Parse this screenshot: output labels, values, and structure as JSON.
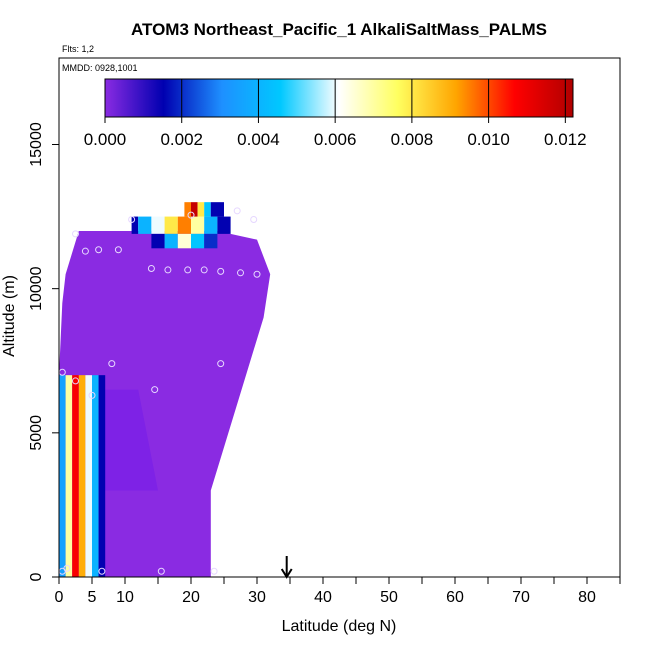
{
  "chart_data": {
    "type": "heatmap",
    "title": "ATOM3 Northeast_Pacific_1 AlkaliSaltMass_PALMS",
    "flights_label": "Flts: 1,2",
    "dates_label": "MMDD: 0928,1001",
    "xlabel": "Latitude (deg N)",
    "ylabel": "Altitude (m)",
    "xlim": [
      0,
      85
    ],
    "ylim": [
      0,
      18000
    ],
    "x_ticks": [
      0,
      5,
      10,
      20,
      30,
      40,
      50,
      60,
      70,
      80
    ],
    "y_ticks": [
      0,
      5000,
      10000,
      15000
    ],
    "colorbar": {
      "range": [
        0,
        0.0122
      ],
      "ticks": [
        "0.000",
        "0.002",
        "0.004",
        "0.006",
        "0.008",
        "0.010",
        "0.012"
      ],
      "tick_values": [
        0,
        0.002,
        0.004,
        0.006,
        0.008,
        0.01,
        0.012
      ],
      "colors": [
        "#8a2be2",
        "#0000b0",
        "#1e90ff",
        "#00c8ff",
        "#ffffff",
        "#ffff60",
        "#ffa500",
        "#ff0000",
        "#b00000"
      ]
    },
    "background_value": 0.0,
    "cells": [
      {
        "lat": [
          0,
          1
        ],
        "alt": [
          0,
          7000
        ],
        "value": 0.0035
      },
      {
        "lat": [
          1,
          2
        ],
        "alt": [
          0,
          7000
        ],
        "value": 0.007
      },
      {
        "lat": [
          2,
          3
        ],
        "alt": [
          0,
          7000
        ],
        "value": 0.0108
      },
      {
        "lat": [
          3,
          4
        ],
        "alt": [
          0,
          7000
        ],
        "value": 0.009
      },
      {
        "lat": [
          4,
          5
        ],
        "alt": [
          0,
          7000
        ],
        "value": 0.006
      },
      {
        "lat": [
          5,
          6
        ],
        "alt": [
          0,
          7000
        ],
        "value": 0.004
      },
      {
        "lat": [
          6,
          7
        ],
        "alt": [
          0,
          7000
        ],
        "value": 0.0015
      },
      {
        "lat": [
          11,
          12
        ],
        "alt": [
          11900,
          12500
        ],
        "value": 0.0015
      },
      {
        "lat": [
          12,
          14
        ],
        "alt": [
          11900,
          12500
        ],
        "value": 0.004
      },
      {
        "lat": [
          14,
          16
        ],
        "alt": [
          11900,
          12500
        ],
        "value": 0.006
      },
      {
        "lat": [
          16,
          18
        ],
        "alt": [
          11900,
          12500
        ],
        "value": 0.008
      },
      {
        "lat": [
          18,
          20
        ],
        "alt": [
          11900,
          12500
        ],
        "value": 0.0095
      },
      {
        "lat": [
          20,
          22
        ],
        "alt": [
          11900,
          12500
        ],
        "value": 0.007
      },
      {
        "lat": [
          22,
          24
        ],
        "alt": [
          11900,
          12500
        ],
        "value": 0.004
      },
      {
        "lat": [
          24,
          26
        ],
        "alt": [
          11900,
          12500
        ],
        "value": 0.0015
      },
      {
        "lat": [
          14,
          16
        ],
        "alt": [
          11400,
          11900
        ],
        "value": 0.0015
      },
      {
        "lat": [
          16,
          18
        ],
        "alt": [
          11400,
          11900
        ],
        "value": 0.004
      },
      {
        "lat": [
          18,
          20
        ],
        "alt": [
          11400,
          11900
        ],
        "value": 0.0065
      },
      {
        "lat": [
          20,
          22
        ],
        "alt": [
          11400,
          11900
        ],
        "value": 0.0045
      },
      {
        "lat": [
          22,
          24
        ],
        "alt": [
          11400,
          11900
        ],
        "value": 0.002
      },
      {
        "lat": [
          19,
          20
        ],
        "alt": [
          12500,
          13000
        ],
        "value": 0.0095
      },
      {
        "lat": [
          20,
          21
        ],
        "alt": [
          12500,
          13000
        ],
        "value": 0.0118
      },
      {
        "lat": [
          21,
          22
        ],
        "alt": [
          12500,
          13000
        ],
        "value": 0.008
      },
      {
        "lat": [
          22,
          23
        ],
        "alt": [
          12500,
          13000
        ],
        "value": 0.0045
      },
      {
        "lat": [
          23,
          25
        ],
        "alt": [
          12500,
          13000
        ],
        "value": 0.0015
      }
    ],
    "flight_points": [
      {
        "lat": 0.5,
        "alt": 200
      },
      {
        "lat": 1.2,
        "alt": 300
      },
      {
        "lat": 6.5,
        "alt": 200
      },
      {
        "lat": 15.5,
        "alt": 200
      },
      {
        "lat": 23.5,
        "alt": 200
      },
      {
        "lat": 0.5,
        "alt": 7100
      },
      {
        "lat": 2.5,
        "alt": 6800
      },
      {
        "lat": 5.0,
        "alt": 6300
      },
      {
        "lat": 8.0,
        "alt": 7400
      },
      {
        "lat": 14.5,
        "alt": 6500
      },
      {
        "lat": 24.5,
        "alt": 7400
      },
      {
        "lat": 2.5,
        "alt": 11900
      },
      {
        "lat": 4.0,
        "alt": 11300
      },
      {
        "lat": 6.0,
        "alt": 11350
      },
      {
        "lat": 9.0,
        "alt": 11350
      },
      {
        "lat": 11.0,
        "alt": 12400
      },
      {
        "lat": 14.0,
        "alt": 10700
      },
      {
        "lat": 16.5,
        "alt": 10650
      },
      {
        "lat": 19.5,
        "alt": 10650
      },
      {
        "lat": 22.0,
        "alt": 10650
      },
      {
        "lat": 24.5,
        "alt": 10600
      },
      {
        "lat": 27.5,
        "alt": 10550
      },
      {
        "lat": 30.0,
        "alt": 10500
      },
      {
        "lat": 20.0,
        "alt": 12550
      },
      {
        "lat": 27.0,
        "alt": 12700
      },
      {
        "lat": 29.5,
        "alt": 12400
      }
    ],
    "arrow_lat": 34.5
  }
}
